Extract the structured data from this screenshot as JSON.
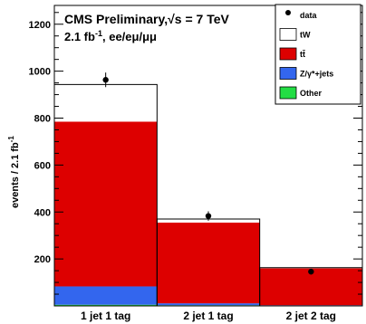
{
  "chart_data": {
    "type": "bar",
    "stacked": true,
    "categories": [
      "1 jet 1 tag",
      "2 jet 1 tag",
      "2 jet 2 tag"
    ],
    "series": [
      {
        "name": "Other",
        "color": "#22dd44",
        "values": [
          5,
          3,
          1
        ]
      },
      {
        "name": "Z/γ*+jets",
        "color": "#3366ee",
        "values": [
          78,
          8,
          2
        ]
      },
      {
        "name": "tt̄",
        "color": "#dd0000",
        "values": [
          702,
          344,
          157
        ]
      },
      {
        "name": "tW",
        "color": "#ffffff",
        "values": [
          158,
          15,
          3
        ]
      }
    ],
    "data_points": {
      "name": "data",
      "values": [
        963,
        383,
        146
      ],
      "errors": [
        31,
        20,
        12
      ]
    },
    "title": "CMS Preliminary,",
    "title_energy": "√s = 7 TeV",
    "subtitle": "2.1 fb",
    "subtitle_sup": "-1",
    "subtitle_rest": ", ee/eμ/μμ",
    "ylabel": "events / 2.1 fb",
    "ylabel_sup": "-1",
    "xlabel": "",
    "ylim": [
      0,
      1280
    ],
    "yticks": [
      200,
      400,
      600,
      800,
      1000,
      1200
    ],
    "legend": {
      "placement": "top-right",
      "entries": [
        {
          "label": "data",
          "kind": "marker"
        },
        {
          "label": "tW",
          "kind": "box",
          "color": "#ffffff"
        },
        {
          "label": "tt̄",
          "kind": "box",
          "color": "#dd0000"
        },
        {
          "label": "Z/γ*+jets",
          "kind": "box",
          "color": "#3366ee"
        },
        {
          "label": "Other",
          "kind": "box",
          "color": "#22dd44"
        }
      ]
    }
  }
}
